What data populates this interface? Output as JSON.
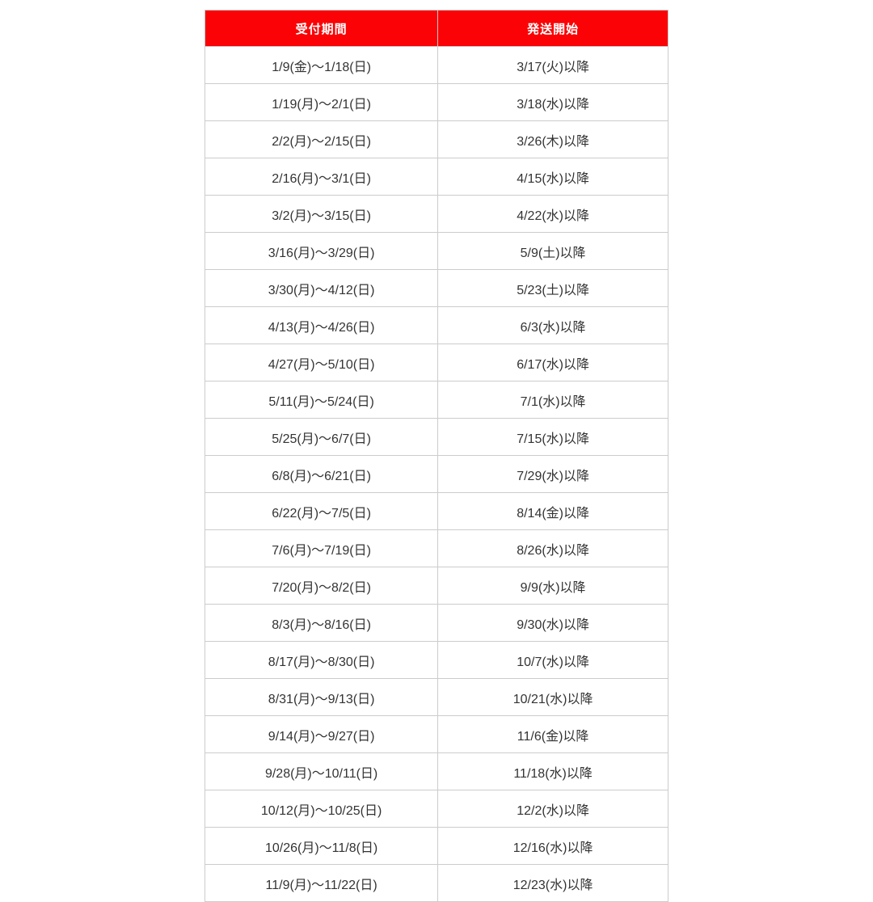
{
  "table": {
    "headers": [
      "受付期間",
      "発送開始"
    ],
    "rows": [
      [
        "1/9(金)～1/18(日)",
        "3/17(火)以降"
      ],
      [
        "1/19(月)～2/1(日)",
        "3/18(水)以降"
      ],
      [
        "2/2(月)～2/15(日)",
        "3/26(木)以降"
      ],
      [
        "2/16(月)～3/1(日)",
        "4/15(水)以降"
      ],
      [
        "3/2(月)～3/15(日)",
        "4/22(水)以降"
      ],
      [
        "3/16(月)～3/29(日)",
        "5/9(土)以降"
      ],
      [
        "3/30(月)～4/12(日)",
        "5/23(土)以降"
      ],
      [
        "4/13(月)～4/26(日)",
        "6/3(水)以降"
      ],
      [
        "4/27(月)～5/10(日)",
        "6/17(水)以降"
      ],
      [
        "5/11(月)～5/24(日)",
        "7/1(水)以降"
      ],
      [
        "5/25(月)～6/7(日)",
        "7/15(水)以降"
      ],
      [
        "6/8(月)～6/21(日)",
        "7/29(水)以降"
      ],
      [
        "6/22(月)～7/5(日)",
        "8/14(金)以降"
      ],
      [
        "7/6(月)～7/19(日)",
        "8/26(水)以降"
      ],
      [
        "7/20(月)～8/2(日)",
        "9/9(水)以降"
      ],
      [
        "8/3(月)～8/16(日)",
        "9/30(水)以降"
      ],
      [
        "8/17(月)～8/30(日)",
        "10/7(水)以降"
      ],
      [
        "8/31(月)～9/13(日)",
        "10/21(水)以降"
      ],
      [
        "9/14(月)～9/27(日)",
        "11/6(金)以降"
      ],
      [
        "9/28(月)～10/11(日)",
        "11/18(水)以降"
      ],
      [
        "10/12(月)～10/25(日)",
        "12/2(水)以降"
      ],
      [
        "10/26(月)～11/8(日)",
        "12/16(水)以降"
      ],
      [
        "11/9(月)～11/22(日)",
        "12/23(水)以降"
      ]
    ]
  },
  "colors": {
    "header_bg": "#fb0306",
    "header_text": "#ffffff",
    "border": "#cccccc",
    "cell_text": "#333333",
    "page_bg": "#ffffff"
  }
}
